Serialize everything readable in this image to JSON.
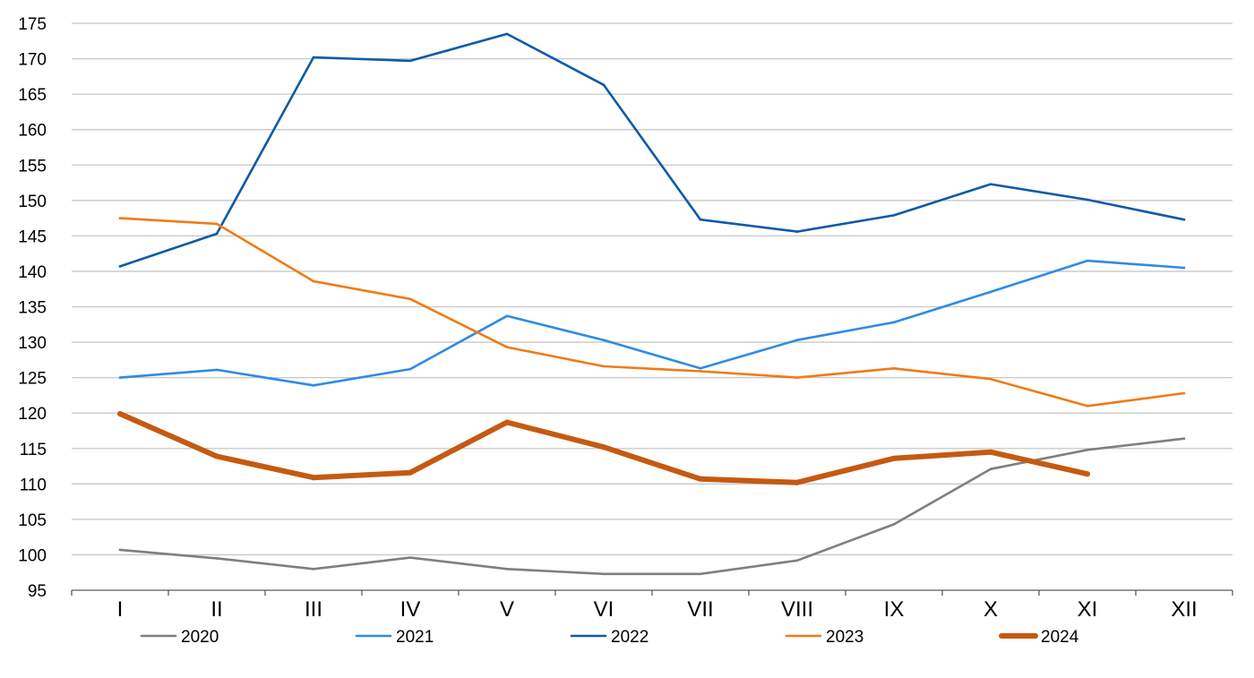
{
  "chart_data": {
    "type": "line",
    "title": "",
    "xlabel": "",
    "ylabel": "",
    "categories": [
      "I",
      "II",
      "III",
      "IV",
      "V",
      "VI",
      "VII",
      "VIII",
      "IX",
      "X",
      "XI",
      "XII"
    ],
    "ylim": [
      95,
      175
    ],
    "yticks": [
      "95",
      "100",
      "105",
      "110",
      "115",
      "120",
      "125",
      "130",
      "135",
      "140",
      "145",
      "150",
      "155",
      "160",
      "165",
      "170",
      "175"
    ],
    "grid": true,
    "legend_position": "bottom",
    "series": [
      {
        "name": "2020",
        "color": "#7f7f7f",
        "values": [
          100.7,
          99.5,
          98.0,
          99.6,
          98.0,
          97.3,
          97.3,
          99.2,
          104.3,
          112.1,
          114.8,
          116.4
        ]
      },
      {
        "name": "2021",
        "color": "#2e8be6",
        "values": [
          125.0,
          126.1,
          123.9,
          126.2,
          133.7,
          130.3,
          126.3,
          130.3,
          132.8,
          137.1,
          141.5,
          140.5
        ]
      },
      {
        "name": "2022",
        "color": "#0f5aa8",
        "values": [
          140.7,
          145.3,
          170.2,
          169.7,
          173.5,
          166.3,
          147.3,
          145.6,
          147.9,
          152.3,
          150.1,
          147.3
        ]
      },
      {
        "name": "2023",
        "color": "#f07b14",
        "values": [
          147.5,
          146.7,
          138.6,
          136.1,
          129.3,
          126.6,
          125.9,
          125.0,
          126.3,
          124.8,
          121.0,
          122.8
        ]
      },
      {
        "name": "2024",
        "color": "#c55a11",
        "values": [
          119.9,
          113.9,
          110.9,
          111.6,
          118.7,
          115.2,
          110.7,
          110.2,
          113.6,
          114.5,
          111.4,
          null
        ]
      }
    ]
  }
}
